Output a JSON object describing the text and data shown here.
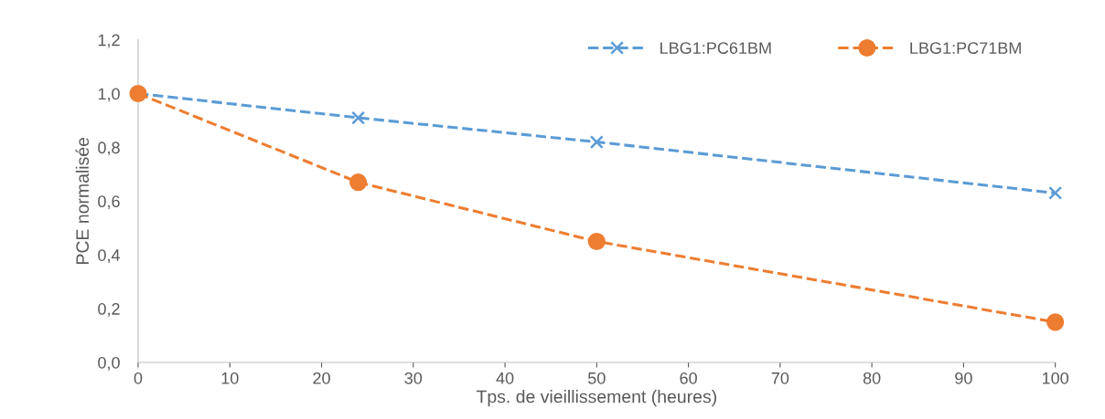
{
  "chart_data": {
    "type": "line",
    "xlabel": "Tps. de vieillissement (heures)",
    "ylabel": "PCE normalisée",
    "x": [
      0,
      24,
      50,
      100
    ],
    "series": [
      {
        "name": "LBG1:PC61BM",
        "color": "#5b9bd5",
        "values": [
          1.0,
          0.91,
          0.82,
          0.63
        ],
        "marker": "cross"
      },
      {
        "name": "LBG1:PC71BM",
        "color": "#ed7d31",
        "values": [
          1.0,
          0.67,
          0.45,
          0.15
        ],
        "marker": "circle"
      }
    ],
    "line_style": "dashed",
    "xlim": [
      0,
      100
    ],
    "xticks": [
      0,
      10,
      20,
      30,
      40,
      50,
      60,
      70,
      80,
      90,
      100
    ],
    "ylim": [
      0,
      1.2
    ],
    "yticks": [
      {
        "value": 0,
        "label": "0,0"
      },
      {
        "value": 0.2,
        "label": "0,2"
      },
      {
        "value": 0.4,
        "label": "0,4"
      },
      {
        "value": 0.6,
        "label": "0,6"
      },
      {
        "value": 0.8,
        "label": "0,8"
      },
      {
        "value": 1.0,
        "label": "1,0"
      },
      {
        "value": 1.2,
        "label": "1,2"
      }
    ],
    "grid": false,
    "legend": "top right"
  }
}
